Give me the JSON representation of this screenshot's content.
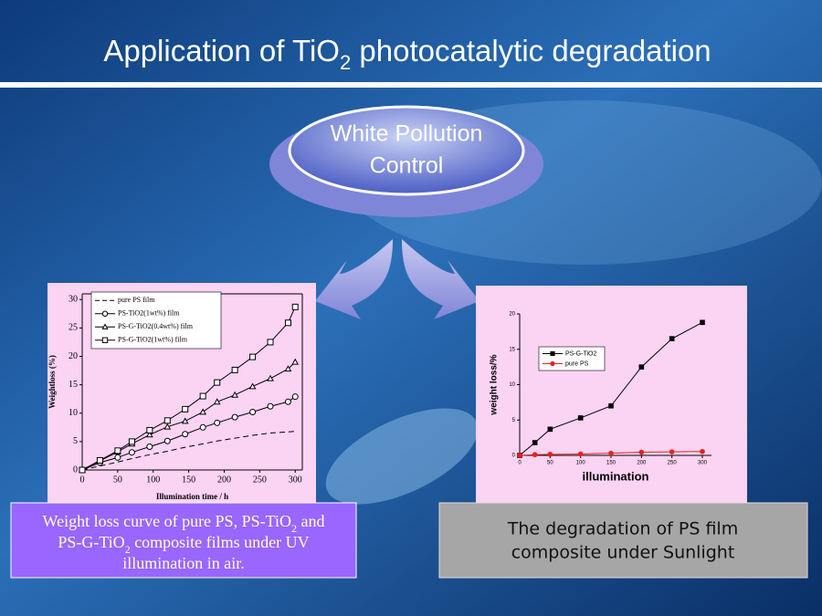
{
  "title": [
    "Application of TiO",
    "2",
    " photocatalytic degradation"
  ],
  "oval": [
    "White Pollution",
    "Control"
  ],
  "caption_left": [
    [
      "Weight loss curve of pure PS, PS-TiO",
      "2",
      " and"
    ],
    [
      "PS-G-TiO",
      "2",
      " composite films under UV"
    ],
    [
      "illumination in air."
    ]
  ],
  "caption_right": [
    "The degradation of PS film",
    "composite under Sunlight"
  ],
  "chart_data": [
    {
      "type": "line",
      "xlabel": "Illumination time / h",
      "ylabel": "Weightloss (%)",
      "x": [
        0,
        25,
        50,
        70,
        95,
        120,
        145,
        170,
        190,
        215,
        240,
        265,
        290,
        300
      ],
      "xlim": [
        0,
        310
      ],
      "xticks": [
        0,
        50,
        100,
        150,
        200,
        250,
        300
      ],
      "ylim": [
        0,
        31
      ],
      "yticks": [
        0,
        5,
        10,
        15,
        20,
        25,
        30
      ],
      "legend": "upper left",
      "series": [
        {
          "name": "pure PS film",
          "color": "#000000",
          "dash": true,
          "marker": "none",
          "values": [
            0,
            0.7,
            1.4,
            2.0,
            2.7,
            3.3,
            4.0,
            4.6,
            5.1,
            5.6,
            6.1,
            6.5,
            6.7,
            6.8
          ]
        },
        {
          "name": "PS-TiO2(1wt%) film",
          "color": "#000000",
          "dash": false,
          "marker": "circle",
          "values": [
            0,
            1.3,
            2.2,
            3.1,
            4.1,
            5.1,
            6.3,
            7.5,
            8.3,
            9.3,
            10.2,
            11.2,
            12.0,
            12.9
          ]
        },
        {
          "name": "PS-G-TiO2(0.4wt%) film",
          "color": "#000000",
          "dash": false,
          "marker": "triangle",
          "values": [
            0,
            1.6,
            3.2,
            4.6,
            6.2,
            7.6,
            8.6,
            10.2,
            12.0,
            13.2,
            14.7,
            16.1,
            17.8,
            19.0
          ]
        },
        {
          "name": "PS-G-TiO2(1wt%) film",
          "color": "#000000",
          "dash": false,
          "marker": "square",
          "values": [
            0,
            1.7,
            3.4,
            5.0,
            7.0,
            8.7,
            10.7,
            13.0,
            15.4,
            17.6,
            19.9,
            22.5,
            25.9,
            28.7
          ]
        }
      ]
    },
    {
      "type": "line",
      "xlabel": "illumination",
      "ylabel": "weight loss/%",
      "x": [
        0,
        25,
        50,
        100,
        150,
        200,
        250,
        300
      ],
      "xlim": [
        0,
        315
      ],
      "xticks": [
        0,
        50,
        100,
        150,
        200,
        250,
        300
      ],
      "ylim": [
        0,
        20
      ],
      "yticks": [
        0,
        5,
        10,
        15,
        20
      ],
      "legend": "upper left",
      "series": [
        {
          "name": "PS-G-TiO2",
          "color": "#000000",
          "dash": false,
          "marker": "square",
          "values": [
            0,
            1.8,
            3.7,
            5.3,
            7.0,
            12.5,
            16.5,
            18.8
          ]
        },
        {
          "name": "pure PS",
          "color": "#e8201c",
          "dash": false,
          "marker": "dot",
          "values": [
            0,
            0.1,
            0.15,
            0.2,
            0.3,
            0.45,
            0.5,
            0.55
          ]
        }
      ]
    }
  ]
}
